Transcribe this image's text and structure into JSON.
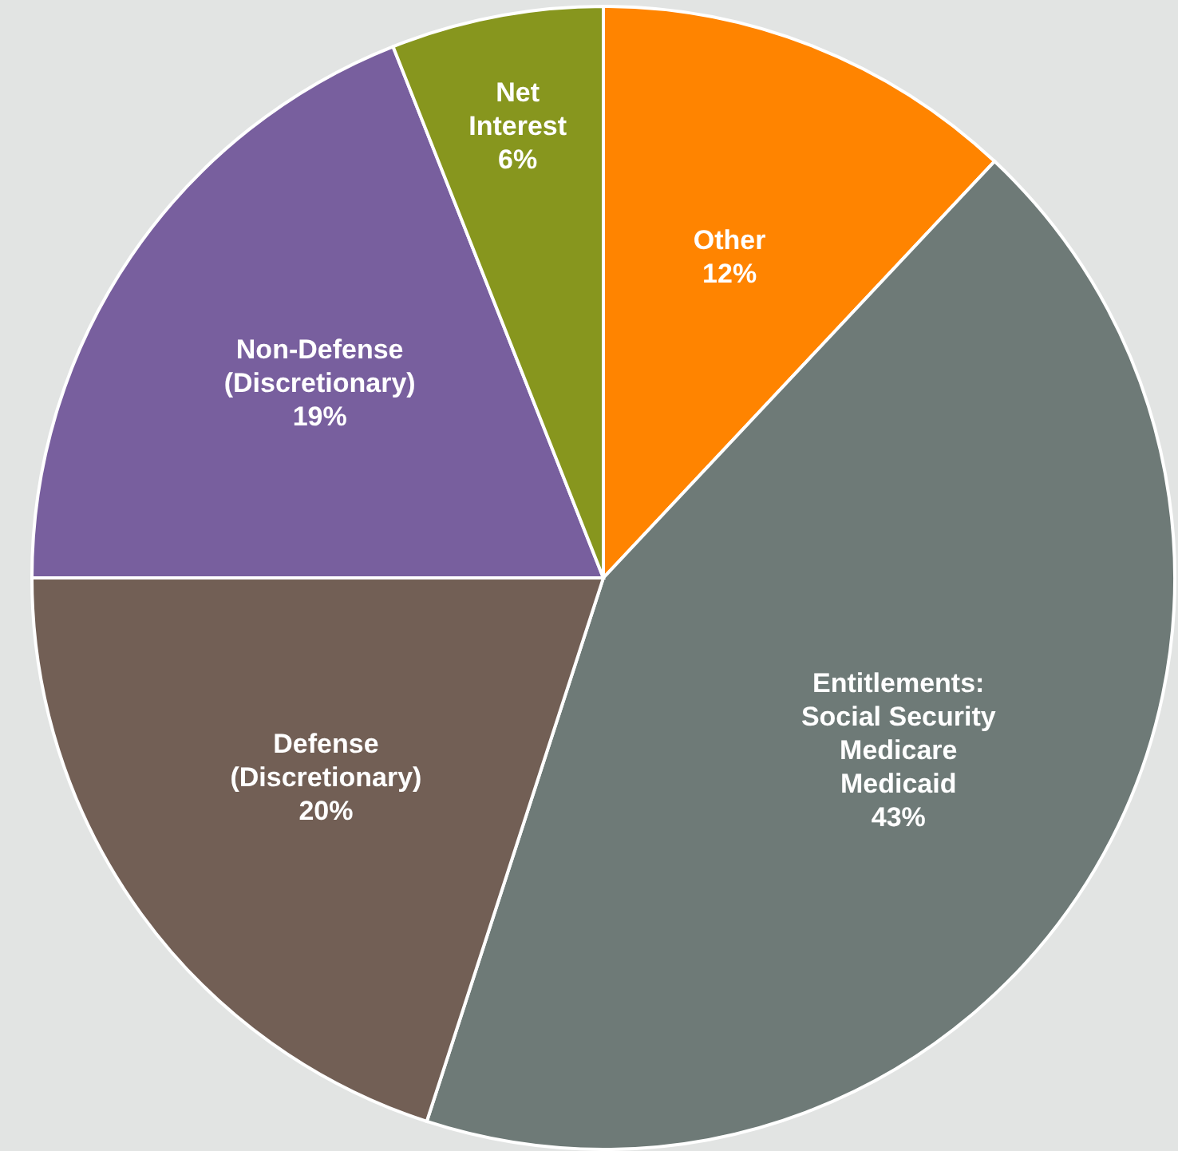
{
  "chart_data": {
    "type": "pie",
    "categories": [
      "Other",
      "Entitlements:\nSocial Security\nMedicare\nMedicaid",
      "Defense\n(Discretionary)",
      "Non-Defense\n(Discretionary)",
      "Net\nInterest"
    ],
    "values": [
      12,
      43,
      20,
      19,
      6
    ],
    "colors": [
      "#ff8400",
      "#6e7a77",
      "#725f55",
      "#785f9e",
      "#87961e"
    ],
    "value_labels": [
      "12%",
      "43%",
      "20%",
      "19%",
      "6%"
    ]
  }
}
